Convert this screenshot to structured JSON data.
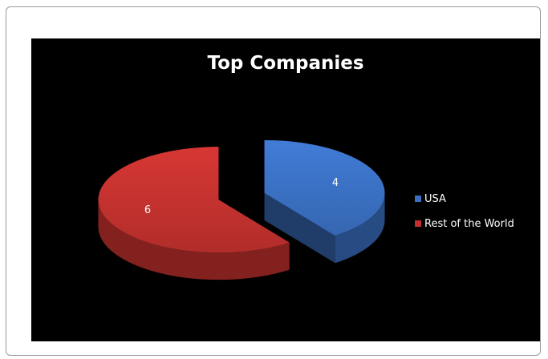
{
  "chart_data": {
    "type": "pie",
    "title": "Top Companies",
    "categories": [
      "USA",
      "Rest of the World"
    ],
    "values": [
      4,
      6
    ],
    "colors": [
      "#3a6fc0",
      "#c0312e"
    ],
    "data_labels": [
      "4",
      "6"
    ],
    "legend": {
      "placement": "right",
      "entries": [
        "USA",
        "Rest of the World"
      ]
    },
    "style": "3d-exploded",
    "background": "#000000"
  }
}
